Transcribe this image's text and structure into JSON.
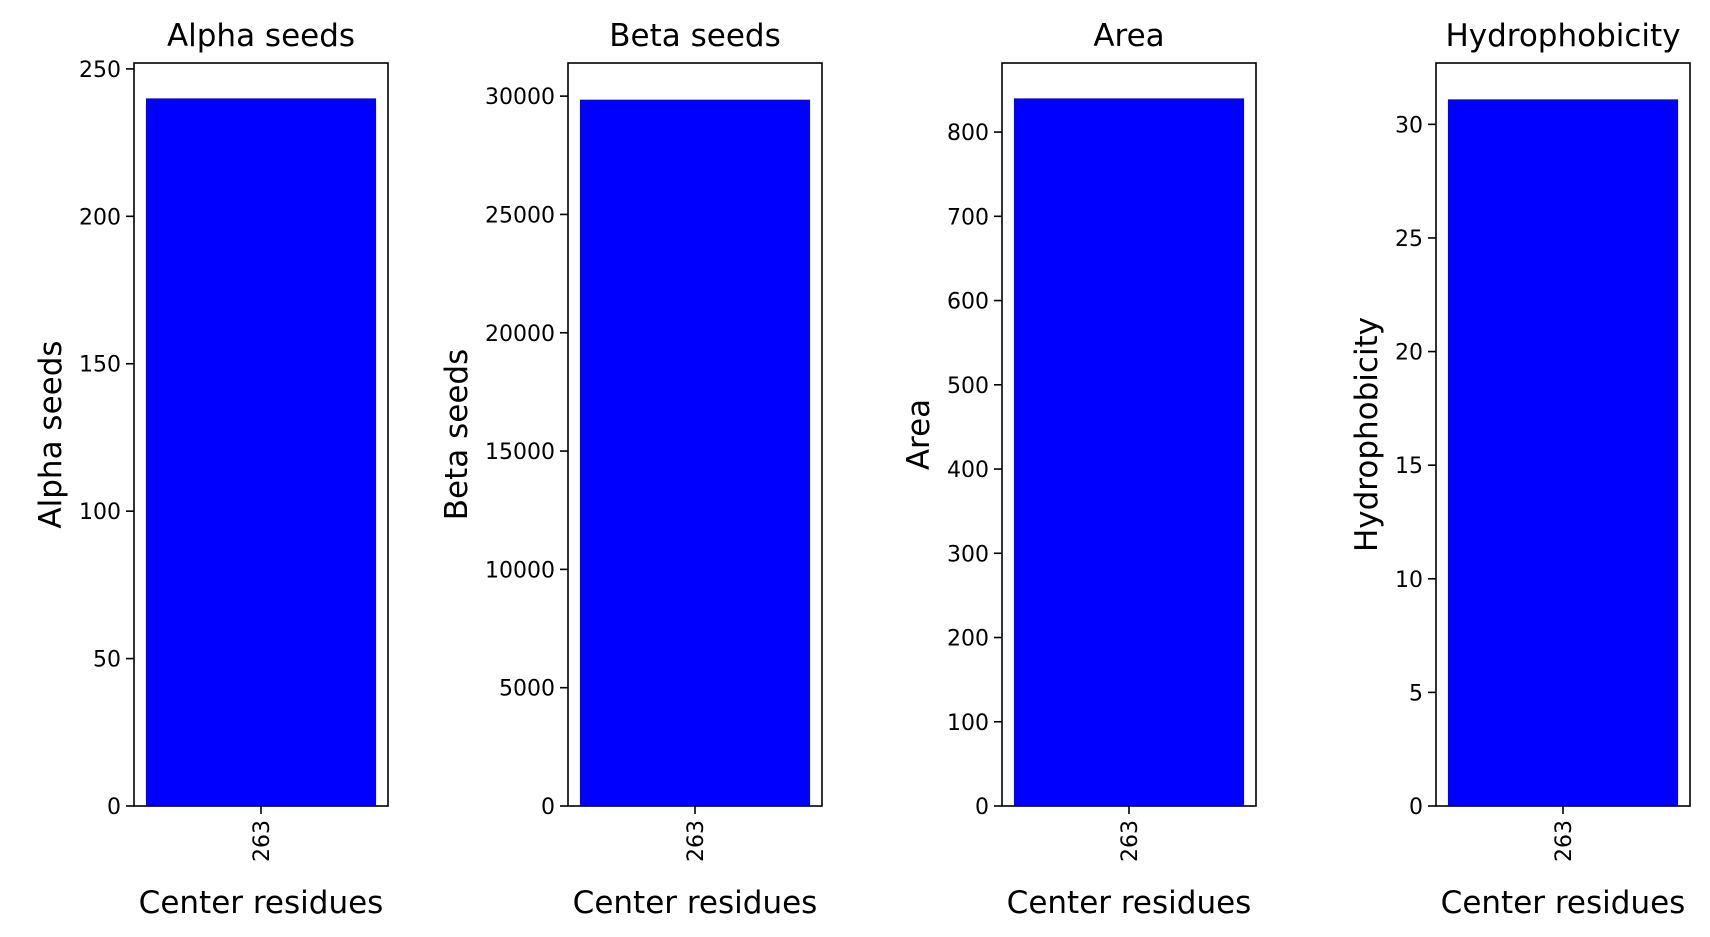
{
  "chart_data": [
    {
      "type": "bar",
      "title": "Alpha seeds",
      "xlabel": "Center residues",
      "ylabel": "Alpha seeds",
      "categories": [
        "263"
      ],
      "values": [
        240
      ],
      "ylim": [
        0,
        252
      ],
      "yticks": [
        0,
        50,
        100,
        150,
        200,
        250
      ],
      "color": "#0000ff",
      "grid": false
    },
    {
      "type": "bar",
      "title": "Beta seeds",
      "xlabel": "Center residues",
      "ylabel": "Beta seeds",
      "categories": [
        "263"
      ],
      "values": [
        29850
      ],
      "ylim": [
        0,
        31400
      ],
      "yticks": [
        0,
        5000,
        10000,
        15000,
        20000,
        25000,
        30000
      ],
      "color": "#0000ff",
      "grid": false
    },
    {
      "type": "bar",
      "title": "Area",
      "xlabel": "Center residues",
      "ylabel": "Area",
      "categories": [
        "263"
      ],
      "values": [
        840
      ],
      "ylim": [
        0,
        882
      ],
      "yticks": [
        0,
        100,
        200,
        300,
        400,
        500,
        600,
        700,
        800
      ],
      "color": "#0000ff",
      "grid": false
    },
    {
      "type": "bar",
      "title": "Hydrophobicity",
      "xlabel": "Center residues",
      "ylabel": "Hydrophobicity",
      "categories": [
        "263"
      ],
      "values": [
        31.1
      ],
      "ylim": [
        0,
        32.7
      ],
      "yticks": [
        0,
        5,
        10,
        15,
        20,
        25,
        30
      ],
      "color": "#0000ff",
      "grid": false
    }
  ]
}
